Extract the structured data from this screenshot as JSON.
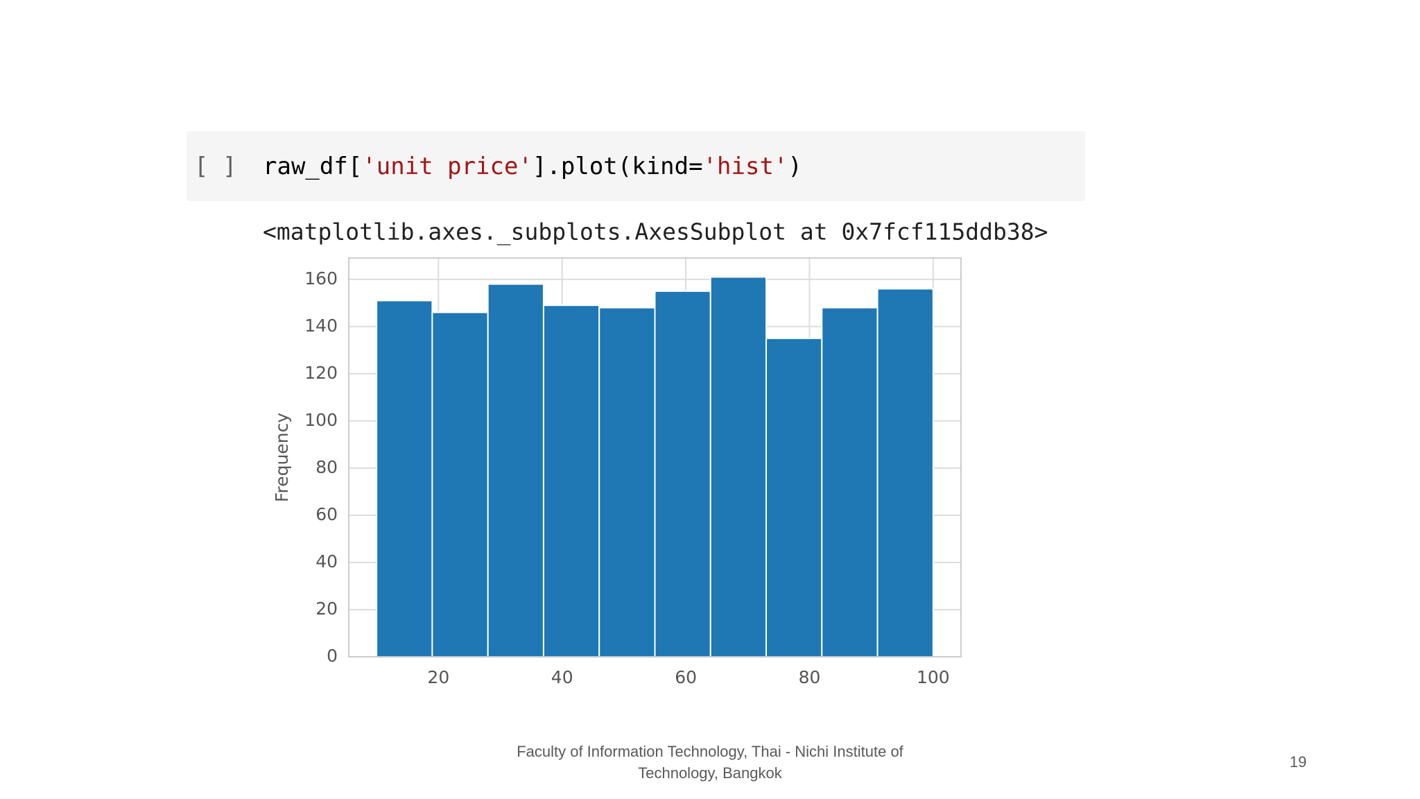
{
  "prompt": "[ ]",
  "code_tokens": [
    "raw_df[",
    "'unit price'",
    "].plot(kind=",
    "'hist'",
    ")"
  ],
  "output_text": "<matplotlib.axes._subplots.AxesSubplot at 0x7fcf115ddb38>",
  "chart_data": {
    "type": "histogram",
    "ylabel": "Frequency",
    "bins": [
      10,
      19,
      28,
      37,
      46,
      55,
      64,
      73,
      82,
      91,
      100
    ],
    "values": [
      151,
      146,
      158,
      149,
      148,
      155,
      161,
      135,
      148,
      156
    ],
    "color": "#1f77b4",
    "xlim": [
      5.5,
      104.5
    ],
    "xticks": [
      20,
      40,
      60,
      80,
      100
    ],
    "ylim": [
      0,
      169.05
    ],
    "yticks": [
      0,
      20,
      40,
      60,
      80,
      100,
      120,
      140,
      160
    ],
    "grid": true
  },
  "footer": [
    "Faculty of Information Technology, Thai - Nichi Institute of",
    "Technology, Bangkok"
  ],
  "page_number": 19
}
